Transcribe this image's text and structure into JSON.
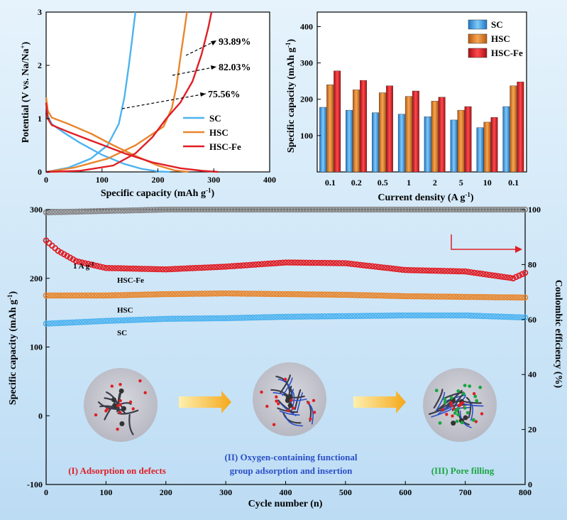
{
  "colors": {
    "sc": "#4db3f0",
    "hsc": "#e8862d",
    "hscfe": "#e01e25",
    "ce": "#888888",
    "stage1": "#e01e25",
    "stage2": "#2b4fc9",
    "stage3": "#1aa640",
    "arrow": "#f5b41a"
  },
  "chart_data": [
    {
      "type": "line",
      "id": "gcd",
      "xlabel": "Specific capacity (mAh g",
      "xlabel_sup": "-1",
      "xlabel_end": ")",
      "ylabel": "Potential (V vs. Na/Na",
      "ylabel_sup": "+",
      "ylabel_end": ")",
      "xlim": [
        0,
        400
      ],
      "ylim": [
        0,
        3
      ],
      "xticks": [
        "0",
        "100",
        "200",
        "300",
        "400"
      ],
      "yticks": [
        "0",
        "1",
        "2",
        "3"
      ],
      "legend": [
        "SC",
        "HSC",
        "HSC-Fe"
      ],
      "legend_position": "right",
      "series": [
        {
          "name": "SC",
          "discharge": [
            [
              0,
              1.38
            ],
            [
              3,
              1.05
            ],
            [
              10,
              0.9
            ],
            [
              30,
              0.75
            ],
            [
              60,
              0.55
            ],
            [
              100,
              0.32
            ],
            [
              140,
              0.15
            ],
            [
              170,
              0.06
            ],
            [
              200,
              0.01
            ],
            [
              222,
              0
            ]
          ],
          "charge": [
            [
              0,
              0
            ],
            [
              40,
              0.08
            ],
            [
              80,
              0.25
            ],
            [
              110,
              0.5
            ],
            [
              130,
              0.9
            ],
            [
              140,
              1.4
            ],
            [
              148,
              2.0
            ],
            [
              154,
              2.5
            ],
            [
              158,
              2.85
            ],
            [
              160,
              3.0
            ]
          ]
        },
        {
          "name": "HSC",
          "discharge": [
            [
              0,
              1.4
            ],
            [
              3,
              1.15
            ],
            [
              10,
              1.02
            ],
            [
              40,
              0.9
            ],
            [
              80,
              0.72
            ],
            [
              120,
              0.5
            ],
            [
              160,
              0.3
            ],
            [
              200,
              0.12
            ],
            [
              230,
              0.03
            ],
            [
              255,
              0
            ]
          ],
          "charge": [
            [
              0,
              0
            ],
            [
              50,
              0.08
            ],
            [
              110,
              0.25
            ],
            [
              160,
              0.5
            ],
            [
              210,
              0.85
            ],
            [
              225,
              1.2
            ],
            [
              233,
              1.6
            ],
            [
              241,
              2.2
            ],
            [
              248,
              2.7
            ],
            [
              252,
              3.0
            ]
          ]
        },
        {
          "name": "HSC-Fe",
          "discharge": [
            [
              0,
              1.3
            ],
            [
              3,
              1.0
            ],
            [
              10,
              0.88
            ],
            [
              40,
              0.75
            ],
            [
              90,
              0.55
            ],
            [
              140,
              0.35
            ],
            [
              190,
              0.18
            ],
            [
              240,
              0.07
            ],
            [
              280,
              0.02
            ],
            [
              308,
              0
            ]
          ],
          "charge": [
            [
              0,
              0
            ],
            [
              60,
              0.02
            ],
            [
              120,
              0.12
            ],
            [
              160,
              0.35
            ],
            [
              190,
              0.65
            ],
            [
              215,
              1.0
            ],
            [
              240,
              1.3
            ],
            [
              262,
              1.7
            ],
            [
              278,
              2.2
            ],
            [
              290,
              2.7
            ],
            [
              296,
              3.0
            ]
          ]
        }
      ],
      "annotations": [
        "93.89%",
        "82.03%",
        "75.56%"
      ]
    },
    {
      "type": "bar",
      "id": "rate",
      "xlabel": "Current density (A g",
      "xlabel_sup": "-1",
      "xlabel_end": ")",
      "ylabel": "Specific capacity (mAh g",
      "ylabel_sup": "-1",
      "ylabel_end": ")",
      "ylim": [
        0,
        440
      ],
      "yticks": [
        "100",
        "200",
        "300",
        "400"
      ],
      "categories": [
        "0.1",
        "0.2",
        "0.5",
        "1",
        "2",
        "5",
        "10",
        "0.1"
      ],
      "legend_position": "top-right",
      "series": [
        {
          "name": "SC",
          "values": [
            178,
            170,
            163,
            159,
            152,
            143,
            122,
            180
          ]
        },
        {
          "name": "HSC",
          "values": [
            240,
            226,
            218,
            208,
            195,
            170,
            137,
            237
          ]
        },
        {
          "name": "HSC-Fe",
          "values": [
            278,
            252,
            237,
            223,
            206,
            180,
            150,
            248
          ]
        }
      ]
    },
    {
      "type": "scatter",
      "id": "cycle",
      "xlabel": "Cycle number (n)",
      "ylabel": "Specific capacity (mAh g",
      "ylabel_sup": "-1",
      "ylabel_end": ")",
      "y2label": "Coulombic efficiency (%)",
      "xlim": [
        0,
        800
      ],
      "ylim": [
        -100,
        300
      ],
      "y2lim": [
        0,
        100
      ],
      "xticks": [
        "0",
        "100",
        "200",
        "300",
        "400",
        "500",
        "600",
        "700",
        "800"
      ],
      "yticks": [
        "-100",
        "0",
        "100",
        "200",
        "300"
      ],
      "y2ticks": [
        "0",
        "20",
        "40",
        "60",
        "80",
        "100"
      ],
      "current_label": "1 A g",
      "current_sup": "-1",
      "series": [
        {
          "name": "HSC-Fe",
          "points": [
            [
              0,
              255
            ],
            [
              20,
              240
            ],
            [
              50,
              225
            ],
            [
              100,
              215
            ],
            [
              200,
              213
            ],
            [
              300,
              217
            ],
            [
              400,
              223
            ],
            [
              500,
              222
            ],
            [
              600,
              212
            ],
            [
              700,
              210
            ],
            [
              780,
              200
            ],
            [
              800,
              208
            ]
          ]
        },
        {
          "name": "HSC",
          "points": [
            [
              0,
              175
            ],
            [
              100,
              175
            ],
            [
              200,
              177
            ],
            [
              300,
              178
            ],
            [
              400,
              177
            ],
            [
              500,
              176
            ],
            [
              600,
              174
            ],
            [
              700,
              173
            ],
            [
              800,
              172
            ]
          ]
        },
        {
          "name": "SC",
          "points": [
            [
              0,
              134
            ],
            [
              100,
              138
            ],
            [
              200,
              141
            ],
            [
              300,
              142
            ],
            [
              400,
              144
            ],
            [
              500,
              145
            ],
            [
              600,
              146
            ],
            [
              700,
              146
            ],
            [
              800,
              143
            ]
          ]
        },
        {
          "name": "CE",
          "points": [
            [
              0,
              99
            ],
            [
              200,
              100
            ],
            [
              400,
              100
            ],
            [
              600,
              100
            ],
            [
              800,
              100
            ]
          ]
        }
      ],
      "stages": [
        {
          "text": "(I) Adsorption on defects"
        },
        {
          "text": "(II) Oxygen-containing functional",
          "text2": "group adsorption and insertion"
        },
        {
          "text": "(III) Pore filling"
        }
      ]
    }
  ]
}
